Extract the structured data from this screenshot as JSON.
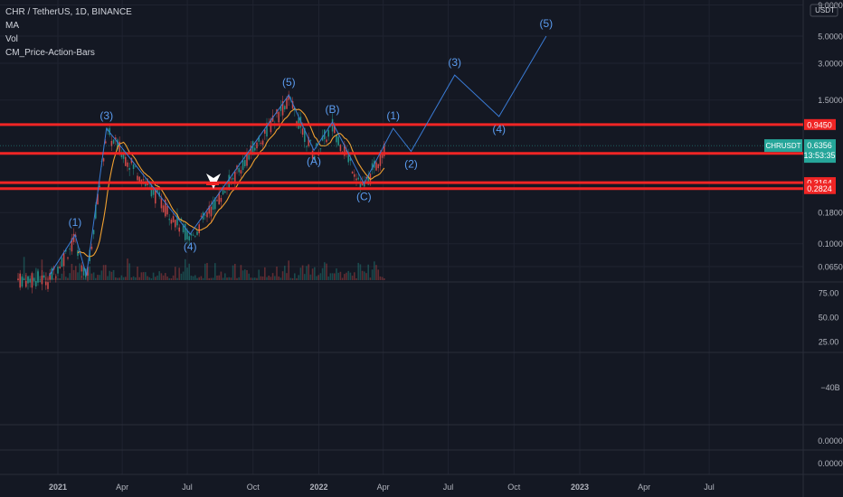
{
  "legend": {
    "symbol": "CHR / TetherUS, 1D, BINANCE",
    "indicators": [
      "MA",
      "Vol",
      "CM_Price-Action-Bars"
    ]
  },
  "axis": {
    "currency": "USDT",
    "price_ticks": [
      "9.0000",
      "5.0000",
      "3.0000",
      "1.5000",
      "0.1800",
      "0.1000",
      "0.0650"
    ],
    "time_ticks": [
      "2021",
      "Apr",
      "Jul",
      "Oct",
      "2022",
      "Apr",
      "Jul",
      "Oct",
      "2023",
      "Apr",
      "Jul"
    ],
    "rsi_ticks": [
      "75.00",
      "50.00",
      "25.00"
    ],
    "pane3_ticks": [
      "−40B"
    ],
    "pane4_ticks": [
      "0.0000"
    ],
    "pane5_ticks": [
      "0.0000"
    ]
  },
  "labels": {
    "price_tag": {
      "symbol": "CHRUSDT",
      "price": "0.6356",
      "countdown": "13:53:35"
    }
  },
  "colors": {
    "background": "#141823",
    "grid": "#1f2330",
    "level": "#f02525",
    "wave": "#3a7bd5",
    "wave_label": "#5b9cf0",
    "ma": "#f0a030",
    "candle_up": "#26a69a",
    "candle_down": "#ef5350",
    "price_tag": "#26a69a"
  },
  "chart_data": {
    "type": "candlestick",
    "scale": "log",
    "x_range": [
      "2020-12",
      "2023-08"
    ],
    "y_range": [
      0.05,
      9.0
    ],
    "horizontal_levels": [
      {
        "value": 0.945,
        "label": "0.9450"
      },
      {
        "value": 0.5487,
        "label": "0.5487"
      },
      {
        "value": 0.3164,
        "label": "0.3164"
      },
      {
        "value": 0.2824,
        "label": "0.2824"
      }
    ],
    "elliott_wave": [
      {
        "date": "2020-12-20",
        "price": 0.055,
        "label": ""
      },
      {
        "date": "2021-01-25",
        "price": 0.118,
        "label": "(1)"
      },
      {
        "date": "2021-02-10",
        "price": 0.055,
        "label": ""
      },
      {
        "date": "2021-03-10",
        "price": 0.88,
        "label": "(3)"
      },
      {
        "date": "2021-07-05",
        "price": 0.12,
        "label": "(4)"
      },
      {
        "date": "2021-11-20",
        "price": 1.65,
        "label": "(5)"
      },
      {
        "date": "2021-12-25",
        "price": 0.58,
        "label": "(A)"
      },
      {
        "date": "2022-01-20",
        "price": 0.99,
        "label": "(B)"
      },
      {
        "date": "2022-03-05",
        "price": 0.31,
        "label": "(C)"
      },
      {
        "date": "2022-04-15",
        "price": 0.88,
        "label": "(1)"
      },
      {
        "date": "2022-05-10",
        "price": 0.57,
        "label": "(2)"
      },
      {
        "date": "2022-07-10",
        "price": 2.4,
        "label": "(3)"
      },
      {
        "date": "2022-09-10",
        "price": 1.1,
        "label": "(4)"
      },
      {
        "date": "2022-11-15",
        "price": 5.0,
        "label": "(5)"
      }
    ],
    "volume_note": "volume bars along bottom of price pane"
  }
}
